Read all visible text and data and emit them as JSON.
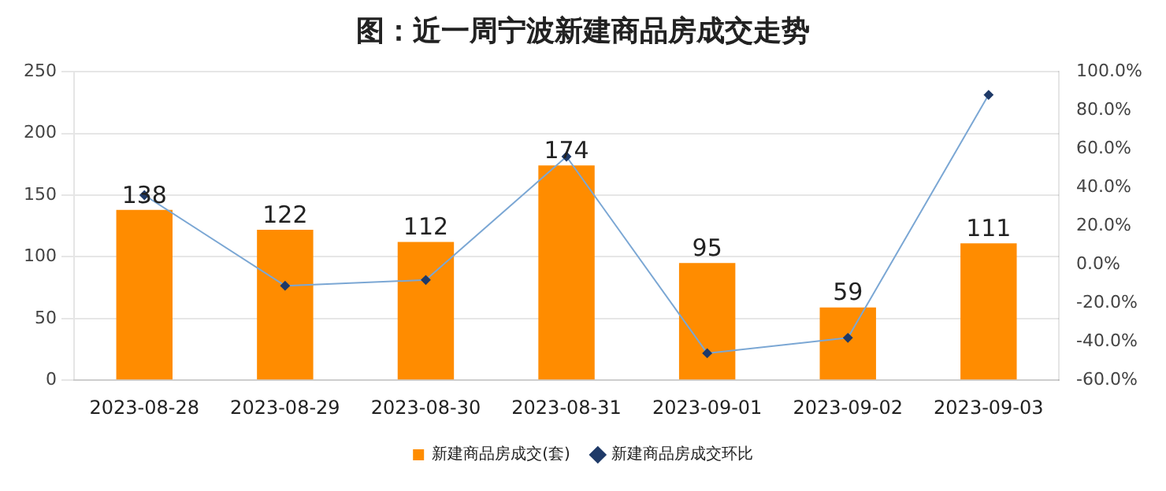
{
  "chart_data": {
    "type": "bar",
    "title": "图：近一周宁波新建商品房成交走势",
    "categories": [
      "2023-08-28",
      "2023-08-29",
      "2023-08-30",
      "2023-08-31",
      "2023-09-01",
      "2023-09-02",
      "2023-09-03"
    ],
    "series": [
      {
        "name": "新建商品房成交(套)",
        "color": "#ff8c00",
        "values": [
          138,
          122,
          112,
          174,
          95,
          59,
          111
        ],
        "value_labels": [
          "138",
          "122",
          "112",
          "174",
          "95",
          "59",
          "111"
        ]
      },
      {
        "name": "新建商品房成交环比",
        "type": "line",
        "axis": "y2",
        "color": "#7ba7d4",
        "values": [
          36,
          -11,
          -8,
          56,
          -46,
          -38,
          88
        ]
      }
    ],
    "ylim": [
      0,
      250
    ],
    "yticks": [
      0,
      50,
      100,
      150,
      200,
      250
    ],
    "y2lim": [
      -60,
      100
    ],
    "y2ticks": [
      {
        "value": -60,
        "label": "-60.0%"
      },
      {
        "value": -40,
        "label": "-40.0%"
      },
      {
        "value": -20,
        "label": "-20.0%"
      },
      {
        "value": 0,
        "label": "0.0%"
      },
      {
        "value": 20,
        "label": "20.0%"
      },
      {
        "value": 40,
        "label": "40.0%"
      },
      {
        "value": 60,
        "label": "60.0%"
      },
      {
        "value": 80,
        "label": "80.0%"
      },
      {
        "value": 100,
        "label": "100.0%"
      }
    ],
    "grid": "y",
    "legend": "bottom",
    "marker": "diamond",
    "line_style": "solid"
  }
}
